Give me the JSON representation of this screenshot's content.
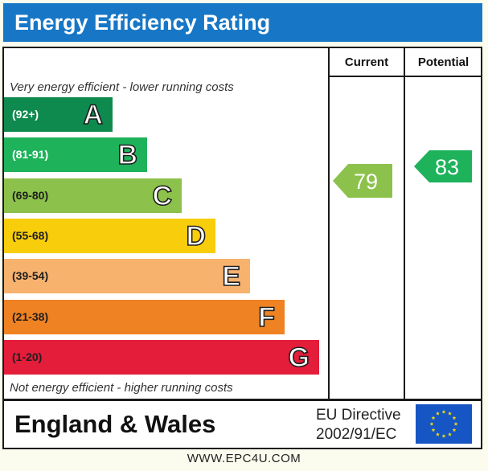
{
  "title": "Energy Efficiency Rating",
  "columns": {
    "current": "Current",
    "potential": "Potential"
  },
  "top_caption": "Very energy efficient - lower running costs",
  "bottom_caption": "Not energy efficient - higher running costs",
  "chart_data": {
    "type": "bar",
    "title": "Energy Efficiency Rating",
    "bands": [
      {
        "letter": "A",
        "range": "(92+)",
        "color": "#0f8a4e",
        "range_text_color": "#ffffff"
      },
      {
        "letter": "B",
        "range": "(81-91)",
        "color": "#1eb25b",
        "range_text_color": "#ffffff"
      },
      {
        "letter": "C",
        "range": "(69-80)",
        "color": "#8cc24b",
        "range_text_color": "#1e1e1e"
      },
      {
        "letter": "D",
        "range": "(55-68)",
        "color": "#f8cd0c",
        "range_text_color": "#1e1e1e"
      },
      {
        "letter": "E",
        "range": "(39-54)",
        "color": "#f7b26e",
        "range_text_color": "#1e1e1e"
      },
      {
        "letter": "F",
        "range": "(21-38)",
        "color": "#ef8223",
        "range_text_color": "#1e1e1e"
      },
      {
        "letter": "G",
        "range": "(1-20)",
        "color": "#e31d3a",
        "range_text_color": "#1e1e1e"
      }
    ],
    "current": {
      "value": 79,
      "band": "C",
      "color": "#8cc24b"
    },
    "potential": {
      "value": 83,
      "band": "B",
      "color": "#1eb25b"
    }
  },
  "footer": {
    "country": "England & Wales",
    "directive_line1": "EU Directive",
    "directive_line2": "2002/91/EC",
    "flag_color": "#1656c4",
    "star_color": "#f5d90a"
  },
  "website": "WWW.EPC4U.COM"
}
